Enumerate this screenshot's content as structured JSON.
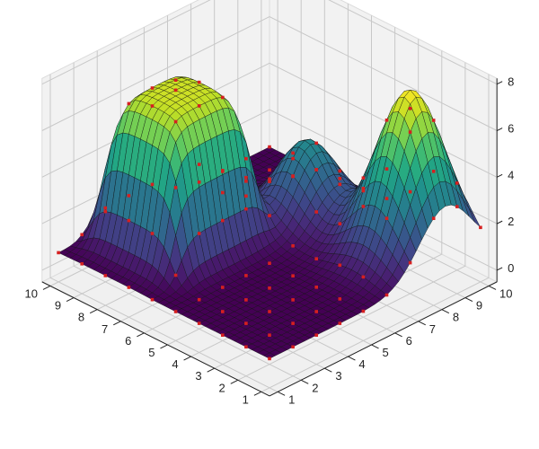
{
  "chart_data": {
    "type": "surface",
    "title": "",
    "xlabel": "",
    "ylabel": "",
    "zlabel": "",
    "x_ticks": [
      1,
      2,
      3,
      4,
      5,
      6,
      7,
      8,
      9,
      10
    ],
    "y_ticks": [
      1,
      2,
      3,
      4,
      5,
      6,
      7,
      8,
      9,
      10
    ],
    "z_ticks": [
      0,
      2,
      4,
      6,
      8
    ],
    "xlim": [
      1,
      10
    ],
    "ylim": [
      1,
      10
    ],
    "zlim": [
      0,
      8
    ],
    "grid": true,
    "colormap": "viridis",
    "marker_color": "#d62020",
    "description": "Interpolated surface of a 10x10 grid with red markers at data points: a tall Gaussian peak (~7) near the left, a smaller bump (~3.5) in the middle-back, and a flat-topped plateau (~6.5) on the right; remaining region ~0.",
    "features": [
      {
        "name": "tall-peak",
        "type": "gaussian",
        "cx": 2.5,
        "cy": 8.5,
        "amp": 7.0,
        "sigma": 1.1
      },
      {
        "name": "small-bump",
        "type": "gaussian",
        "cx": 6.2,
        "cy": 7.8,
        "amp": 3.3,
        "sigma": 0.95
      },
      {
        "name": "plateau",
        "type": "plateau",
        "x0": 6.2,
        "x1": 9.6,
        "y0": 2.2,
        "y1": 5.8,
        "amp": 6.5,
        "edge": 0.9
      }
    ],
    "grid_points": 10
  },
  "axes": {
    "x_tick_labels": [
      "1",
      "2",
      "3",
      "4",
      "5",
      "6",
      "7",
      "8",
      "9",
      "10"
    ],
    "y_tick_labels": [
      "1",
      "2",
      "3",
      "4",
      "5",
      "6",
      "7",
      "8",
      "9",
      "10"
    ],
    "z_tick_labels": [
      "0",
      "2",
      "4",
      "6",
      "8"
    ]
  }
}
